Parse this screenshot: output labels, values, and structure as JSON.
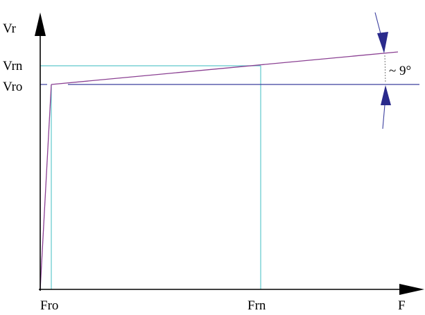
{
  "diagram": {
    "y_axis_label": "Vr",
    "x_axis_label": "F",
    "y_ticks": {
      "vrn": "Vrn",
      "vro": "Vro"
    },
    "x_ticks": {
      "fro": "Fro",
      "frn": "Frn"
    },
    "angle_label": "~ 9°",
    "colors": {
      "axis": "#000000",
      "guide_line": "#5fc8cc",
      "reference_line": "#3b3f9e",
      "characteristic_curve": "#8a3f92",
      "angle_arrow": "#2a2a8c"
    }
  }
}
